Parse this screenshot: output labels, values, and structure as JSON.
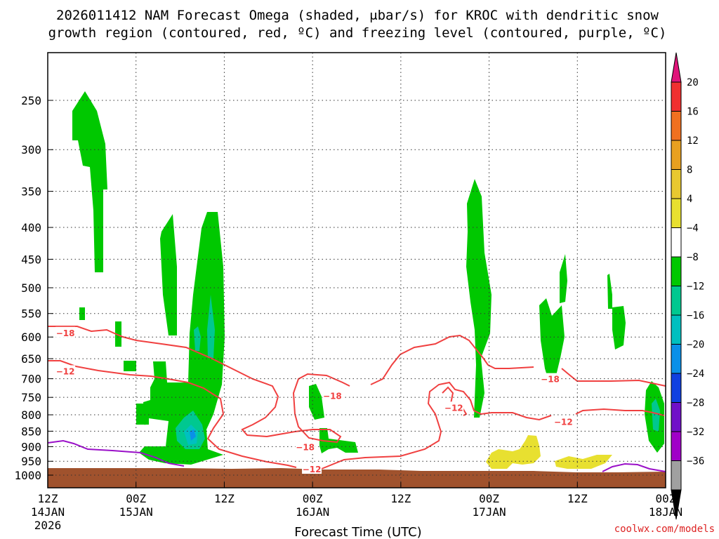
{
  "chart_data": {
    "type": "time-height cross section",
    "title_line1": "2026011412 NAM Forecast Omega (shaded, μbar/s) for KROC with dendritic snow",
    "title_line2": "growth region (contoured, red, ºC) and freezing level (contoured, purple, ºC)",
    "xlabel": "Forecast Time (UTC)",
    "credit": "coolwx.com/models",
    "x_range_hours": [
      0,
      84
    ],
    "x_ticks": [
      {
        "hour": 0,
        "line1": "12Z",
        "line2": "14JAN",
        "line3": "2026"
      },
      {
        "hour": 12,
        "line1": "00Z",
        "line2": "15JAN",
        "line3": ""
      },
      {
        "hour": 24,
        "line1": "12Z",
        "line2": "",
        "line3": ""
      },
      {
        "hour": 36,
        "line1": "00Z",
        "line2": "16JAN",
        "line3": ""
      },
      {
        "hour": 48,
        "line1": "12Z",
        "line2": "",
        "line3": ""
      },
      {
        "hour": 60,
        "line1": "00Z",
        "line2": "17JAN",
        "line3": ""
      },
      {
        "hour": 72,
        "line1": "12Z",
        "line2": "",
        "line3": ""
      },
      {
        "hour": 84,
        "line1": "00Z",
        "line2": "18JAN",
        "line3": ""
      }
    ],
    "y_ticks_hpa": [
      250,
      300,
      350,
      400,
      450,
      500,
      550,
      600,
      650,
      700,
      750,
      800,
      850,
      900,
      950,
      1000
    ],
    "colorbar": {
      "labels": [
        "20",
        "16",
        "12",
        "8",
        "4",
        "−4",
        "−8",
        "−12",
        "−16",
        "−20",
        "−24",
        "−28",
        "−32",
        "−36"
      ],
      "top_color": "#e0147a",
      "colors": [
        "#f03030",
        "#f07020",
        "#e8a020",
        "#e8c830",
        "#e8e030",
        "#ffffff",
        "#00c800",
        "#00c890",
        "#00c0c0",
        "#0a90e8",
        "#1040e0",
        "#7010c8",
        "#a000c8",
        "#a0a0a0"
      ],
      "bottom_color": "#000000"
    },
    "contour_labels": [
      {
        "text": "−18",
        "hour": 2.4,
        "hpa": 590,
        "color": "#f04040"
      },
      {
        "text": "−12",
        "hour": 2.4,
        "hpa": 680,
        "color": "#f04040"
      },
      {
        "text": "−18",
        "hour": 38.7,
        "hpa": 745,
        "color": "#f04040"
      },
      {
        "text": "−18",
        "hour": 35.0,
        "hpa": 900,
        "color": "#f04040"
      },
      {
        "text": "−12",
        "hour": 35.9,
        "hpa": 977,
        "color": "#f04040"
      },
      {
        "text": "−12",
        "hour": 55.2,
        "hpa": 778,
        "color": "#f04040"
      },
      {
        "text": "−18",
        "hour": 68.3,
        "hpa": 700,
        "color": "#f04040"
      },
      {
        "text": "−12",
        "hour": 70.1,
        "hpa": 820,
        "color": "#f04040"
      }
    ]
  }
}
